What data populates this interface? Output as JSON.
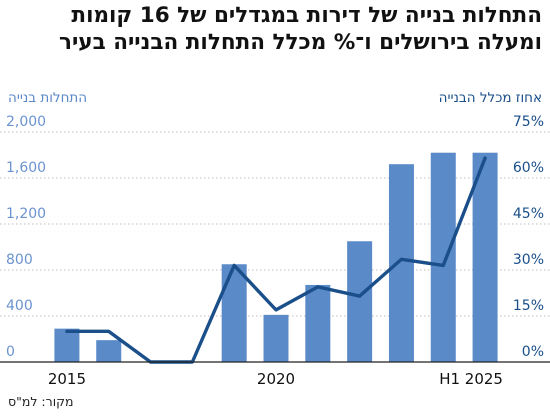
{
  "title_lines": [
    "התחלות בנייה של דירות במגדלים של 16 קומות",
    "ומעלה בירושלים ו־% מכלל התחלות הבנייה בעיר"
  ],
  "left_axis_title": "התחלות בנייה",
  "right_axis_title": "אחוז מכלל הבנייה",
  "source": "מקור: למ\"ס",
  "chart_data": {
    "type": "bar",
    "title": "התחלות בנייה של דירות במגדלים של 16 קומות ומעלה בירושלים ו־% מכלל התחלות הבנייה בעיר",
    "categories": [
      "2015",
      "2016",
      "2017",
      "2018",
      "2019",
      "2020",
      "2021",
      "2022",
      "2023",
      "2024",
      "H1 2025"
    ],
    "x_tick_labels": [
      "2015",
      "2020",
      "H1 2025"
    ],
    "series": [
      {
        "name": "התחלות בנייה",
        "type": "bar",
        "axis": "left",
        "color": "#5b8ac9",
        "values": [
          290,
          190,
          0,
          0,
          850,
          410,
          670,
          1050,
          1720,
          1820,
          1820
        ]
      },
      {
        "name": "אחוז מכלל הבנייה",
        "type": "line",
        "axis": "right",
        "color": "#1a4f8a",
        "values": [
          10,
          10,
          0,
          0,
          31.5,
          17,
          24.5,
          21.5,
          33.5,
          31.5,
          66.5
        ]
      }
    ],
    "y_left": {
      "label": "התחלות בנייה",
      "ylim": [
        0,
        2000
      ],
      "ticks": [
        0,
        400,
        800,
        1200,
        1600,
        2000
      ],
      "tick_labels": [
        "0",
        "400",
        "800",
        "1,200",
        "1,600",
        "2,000"
      ]
    },
    "y_right": {
      "label": "אחוז מכלל הבנייה",
      "ylim": [
        0,
        75
      ],
      "ticks": [
        0,
        15,
        30,
        45,
        60,
        75
      ],
      "tick_labels": [
        "0%",
        "15%",
        "30%",
        "45%",
        "60%",
        "75%"
      ]
    },
    "grid": true,
    "legend": "none"
  }
}
